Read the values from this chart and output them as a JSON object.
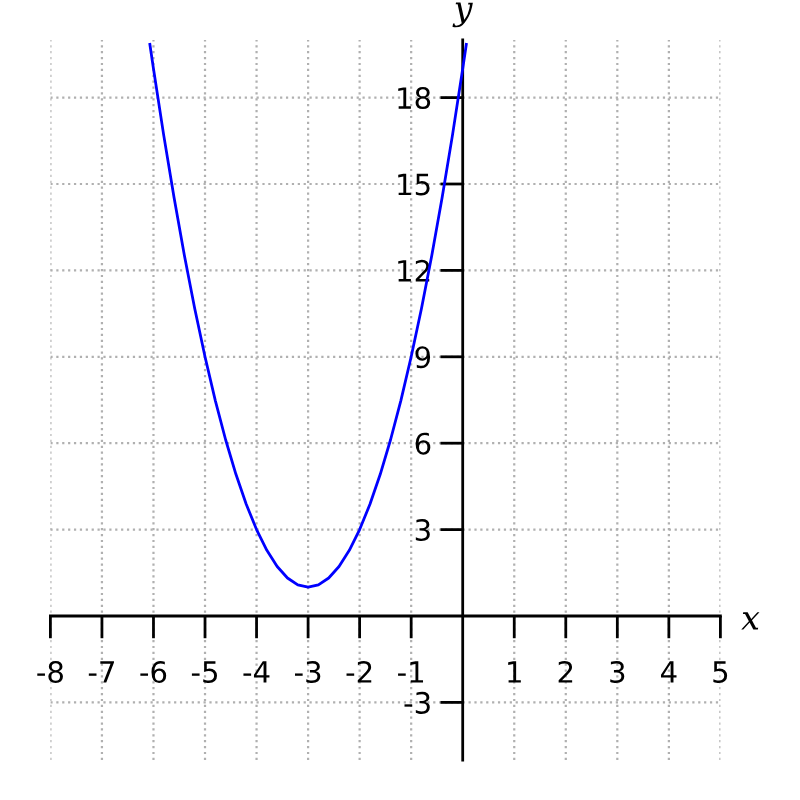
{
  "chart_data": {
    "type": "line",
    "xlabel": "x",
    "ylabel": "y",
    "series": [
      {
        "color": "#0000ff",
        "x": [
          -6.07,
          -6.0,
          -5.8,
          -5.6,
          -5.4,
          -5.2,
          -5.0,
          -4.8,
          -4.6,
          -4.4,
          -4.2,
          -4.0,
          -3.8,
          -3.6,
          -3.4,
          -3.2,
          -3.0,
          -2.8,
          -2.6,
          -2.4,
          -2.2,
          -2.0,
          -1.8,
          -1.6,
          -1.4,
          -1.2,
          -1.0,
          -0.8,
          -0.6,
          -0.4,
          -0.2,
          0.0,
          0.07
        ],
        "values": [
          19.85,
          19.0,
          16.68,
          14.52,
          12.52,
          10.68,
          9.0,
          7.48,
          6.12,
          4.92,
          3.88,
          3.0,
          2.28,
          1.72,
          1.32,
          1.08,
          1.0,
          1.08,
          1.32,
          1.72,
          2.28,
          3.0,
          3.88,
          4.92,
          6.12,
          7.48,
          9.0,
          10.68,
          12.52,
          14.52,
          16.68,
          19.0,
          19.85
        ]
      }
    ],
    "xlim": [
      -8,
      5
    ],
    "ylim": [
      -5,
      20
    ],
    "xticks": [
      -8,
      -7,
      -6,
      -5,
      -4,
      -3,
      -2,
      -1,
      1,
      2,
      3,
      4,
      5
    ],
    "yticks": [
      -3,
      3,
      6,
      9,
      12,
      15,
      18
    ],
    "grid": true,
    "line_style": "solid"
  }
}
